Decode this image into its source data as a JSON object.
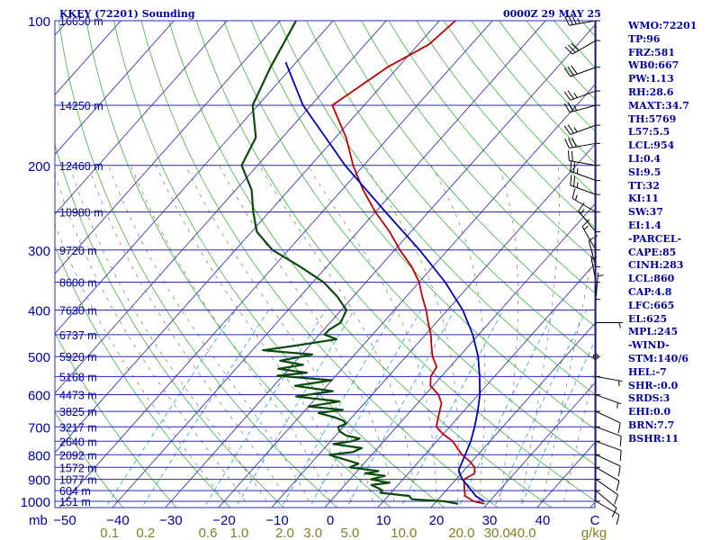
{
  "header": {
    "title": "KKEY (72201) Sounding",
    "time": "0000Z 29 MAY 25"
  },
  "indices": [
    "WMO:72201",
    "TP:96",
    "FRZ:581",
    "WB0:667",
    "PW:1.13",
    "RH:28.6",
    "MAXT:34.7",
    "TH:5769",
    "L57:5.5",
    "LCL:954",
    "LI:0.4",
    "SI:9.5",
    "TT:32",
    "KI:11",
    "SW:37",
    "EI:1.4",
    "-PARCEL-",
    "CAPE:85",
    "CINH:283",
    "LCL:860",
    "CAP:4.8",
    "LFC:665",
    "EL:625",
    "MPL:245",
    "-WIND-",
    "STM:140/6",
    "HEL:-7",
    "SHR-:0.0",
    "SRDS:3",
    "EHI:0.0",
    "BRN:7.7",
    "BSHR:11"
  ],
  "colors": {
    "isobar": "#2a2ab0",
    "isotherm": "#3a3aa8",
    "dry_adiabat": "#3cb43c",
    "moist_adiabat": "#7a7a60",
    "mixing_ratio": "#33aadd",
    "temperature": "#c00000",
    "dewpoint": "#0a4a0a",
    "parcel": "#0000b4",
    "text": "#0000a0",
    "mixing_label": "#808020"
  },
  "chart_data": {
    "type": "line",
    "title": "KKEY (72201) Sounding",
    "xlabel": "",
    "ylabel": "mb",
    "xlim": [
      -50,
      50
    ],
    "ylim": [
      1000,
      100
    ],
    "y_scale": "log-pressure",
    "pressure_ticks": [
      100,
      200,
      300,
      400,
      500,
      600,
      700,
      800,
      900,
      1000
    ],
    "temperature_ticks": [
      -50,
      -40,
      -30,
      -20,
      -10,
      0,
      10,
      20,
      30,
      40,
      "C"
    ],
    "mixing_ratio_ticks": [
      "0.1",
      "0.2",
      "0.6",
      "1.0",
      "2.0",
      "3.0",
      "5.0",
      "10.0",
      "20.0",
      "30.0",
      "40.0",
      "g/kg"
    ],
    "height_labels": [
      {
        "p": 100,
        "text": "16650 m"
      },
      {
        "p": 150,
        "text": "14250 m"
      },
      {
        "p": 200,
        "text": "12460 m"
      },
      {
        "p": 250,
        "text": "10980 m"
      },
      {
        "p": 300,
        "text": "9720 m"
      },
      {
        "p": 350,
        "text": "8600 m"
      },
      {
        "p": 400,
        "text": "7630 m"
      },
      {
        "p": 450,
        "text": "6737 m"
      },
      {
        "p": 500,
        "text": "5920 m"
      },
      {
        "p": 550,
        "text": "5168 m"
      },
      {
        "p": 600,
        "text": "4473 m"
      },
      {
        "p": 650,
        "text": "3825 m"
      },
      {
        "p": 700,
        "text": "3217 m"
      },
      {
        "p": 750,
        "text": "2640 m"
      },
      {
        "p": 800,
        "text": "2092 m"
      },
      {
        "p": 850,
        "text": "1572 m"
      },
      {
        "p": 900,
        "text": "1077 m"
      },
      {
        "p": 950,
        "text": "604 m"
      },
      {
        "p": 1000,
        "text": "151 m"
      }
    ],
    "series": [
      {
        "key": "temperature",
        "points": [
          [
            1012,
            29.5
          ],
          [
            1000,
            27
          ],
          [
            975,
            24.5
          ],
          [
            950,
            23.5
          ],
          [
            925,
            22.5
          ],
          [
            900,
            21.5
          ],
          [
            875,
            22.5
          ],
          [
            850,
            21.5
          ],
          [
            825,
            19.5
          ],
          [
            800,
            17
          ],
          [
            775,
            15
          ],
          [
            750,
            13
          ],
          [
            725,
            10
          ],
          [
            700,
            7.5
          ],
          [
            675,
            6.5
          ],
          [
            650,
            5.5
          ],
          [
            625,
            4.5
          ],
          [
            600,
            2.5
          ],
          [
            575,
            -0.5
          ],
          [
            550,
            -2
          ],
          [
            525,
            -2.5
          ],
          [
            500,
            -5
          ],
          [
            475,
            -7
          ],
          [
            450,
            -9
          ],
          [
            425,
            -11.5
          ],
          [
            400,
            -14
          ],
          [
            375,
            -17
          ],
          [
            350,
            -20
          ],
          [
            325,
            -24
          ],
          [
            300,
            -29
          ],
          [
            275,
            -34
          ],
          [
            250,
            -40
          ],
          [
            225,
            -46
          ],
          [
            200,
            -52
          ],
          [
            175,
            -58
          ],
          [
            150,
            -66
          ],
          [
            125,
            -62
          ],
          [
            112,
            -58
          ],
          [
            100,
            -57
          ]
        ]
      },
      {
        "key": "dewpoint",
        "points": [
          [
            1012,
            24.5
          ],
          [
            1000,
            21.5
          ],
          [
            990,
            15
          ],
          [
            975,
            14
          ],
          [
            960,
            8
          ],
          [
            950,
            8
          ],
          [
            940,
            7
          ],
          [
            925,
            5
          ],
          [
            915,
            8
          ],
          [
            900,
            4
          ],
          [
            885,
            6
          ],
          [
            875,
            2
          ],
          [
            865,
            4
          ],
          [
            850,
            -2
          ],
          [
            835,
            -1
          ],
          [
            820,
            -4
          ],
          [
            800,
            -8
          ],
          [
            790,
            -4
          ],
          [
            775,
            -3
          ],
          [
            760,
            -9
          ],
          [
            750,
            -6
          ],
          [
            740,
            -5
          ],
          [
            730,
            -8
          ],
          [
            715,
            -10
          ],
          [
            700,
            -11
          ],
          [
            690,
            -10
          ],
          [
            680,
            -11
          ],
          [
            670,
            -13
          ],
          [
            655,
            -17
          ],
          [
            645,
            -13
          ],
          [
            635,
            -20
          ],
          [
            620,
            -15
          ],
          [
            605,
            -24
          ],
          [
            590,
            -18
          ],
          [
            575,
            -26
          ],
          [
            560,
            -20
          ],
          [
            548,
            -31
          ],
          [
            540,
            -26
          ],
          [
            530,
            -32
          ],
          [
            520,
            -28
          ],
          [
            510,
            -33
          ],
          [
            495,
            -28
          ],
          [
            485,
            -38
          ],
          [
            475,
            -33
          ],
          [
            460,
            -26
          ],
          [
            450,
            -29
          ],
          [
            440,
            -29
          ],
          [
            425,
            -28
          ],
          [
            400,
            -29
          ],
          [
            375,
            -33
          ],
          [
            350,
            -38
          ],
          [
            325,
            -45
          ],
          [
            300,
            -53
          ],
          [
            275,
            -59
          ],
          [
            250,
            -63
          ],
          [
            225,
            -67
          ],
          [
            200,
            -73
          ],
          [
            175,
            -75
          ],
          [
            150,
            -81
          ],
          [
            125,
            -84
          ],
          [
            100,
            -87
          ]
        ]
      },
      {
        "key": "parcel",
        "points": [
          [
            1000,
            29
          ],
          [
            975,
            26.5
          ],
          [
            950,
            24.8
          ],
          [
            925,
            23
          ],
          [
            900,
            21.2
          ],
          [
            880,
            20
          ],
          [
            860,
            18.9
          ],
          [
            840,
            18.5
          ],
          [
            800,
            17.6
          ],
          [
            750,
            16.4
          ],
          [
            700,
            14.7
          ],
          [
            650,
            12.7
          ],
          [
            600,
            10.3
          ],
          [
            550,
            7.2
          ],
          [
            500,
            3.6
          ],
          [
            450,
            -1.1
          ],
          [
            400,
            -7.1
          ],
          [
            350,
            -15.1
          ],
          [
            300,
            -25.3
          ],
          [
            250,
            -38.1
          ],
          [
            200,
            -53.5
          ],
          [
            150,
            -71.5
          ],
          [
            122,
            -82
          ]
        ]
      }
    ],
    "wind_barbs": [
      {
        "p": 100,
        "dir": 260,
        "spd": 35
      },
      {
        "p": 110,
        "dir": 240,
        "spd": 30
      },
      {
        "p": 125,
        "dir": 250,
        "spd": 30
      },
      {
        "p": 140,
        "dir": 250,
        "spd": 25
      },
      {
        "p": 150,
        "dir": 255,
        "spd": 25
      },
      {
        "p": 165,
        "dir": 250,
        "spd": 25
      },
      {
        "p": 180,
        "dir": 260,
        "spd": 30
      },
      {
        "p": 200,
        "dir": 280,
        "spd": 20
      },
      {
        "p": 215,
        "dir": 290,
        "spd": 25
      },
      {
        "p": 230,
        "dir": 290,
        "spd": 25
      },
      {
        "p": 250,
        "dir": 300,
        "spd": 15
      },
      {
        "p": 275,
        "dir": 320,
        "spd": 15
      },
      {
        "p": 300,
        "dir": 330,
        "spd": 15
      },
      {
        "p": 325,
        "dir": 345,
        "spd": 10
      },
      {
        "p": 350,
        "dir": 350,
        "spd": 5
      },
      {
        "p": 380,
        "dir": 5,
        "spd": 5
      },
      {
        "p": 425,
        "dir": 90,
        "spd": 5
      },
      {
        "p": 500,
        "dir": 0,
        "spd": 0
      },
      {
        "p": 550,
        "dir": 100,
        "spd": 5
      },
      {
        "p": 600,
        "dir": 110,
        "spd": 5
      },
      {
        "p": 650,
        "dir": 115,
        "spd": 10
      },
      {
        "p": 700,
        "dir": 110,
        "spd": 10
      },
      {
        "p": 750,
        "dir": 110,
        "spd": 10
      },
      {
        "p": 800,
        "dir": 115,
        "spd": 10
      },
      {
        "p": 850,
        "dir": 120,
        "spd": 10
      },
      {
        "p": 900,
        "dir": 125,
        "spd": 10
      },
      {
        "p": 950,
        "dir": 130,
        "spd": 10
      },
      {
        "p": 1000,
        "dir": 120,
        "spd": 10
      }
    ]
  }
}
